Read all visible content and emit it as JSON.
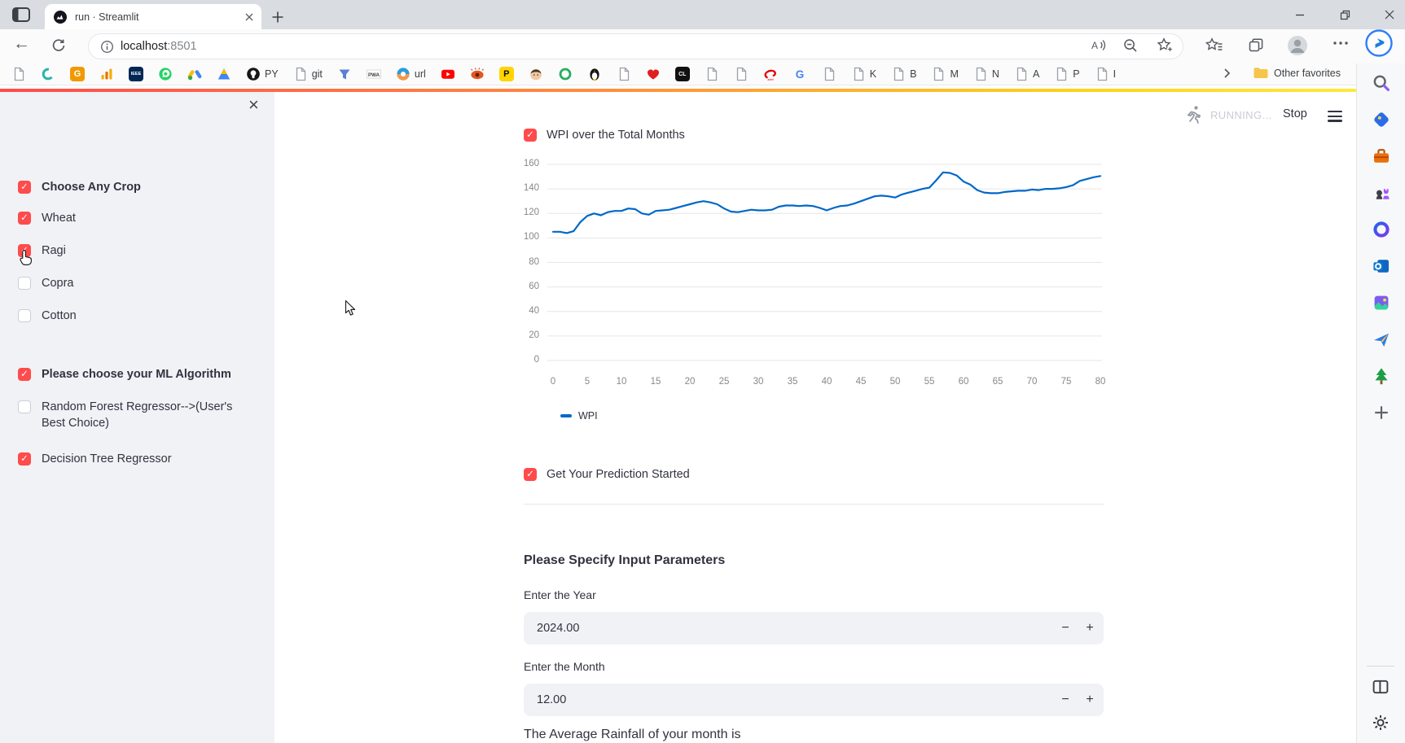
{
  "browser": {
    "tab_title": "run · Streamlit",
    "url_host": "localhost",
    "url_port": ":8501",
    "other_favorites_label": "Other favorites",
    "bookmarks": [
      {
        "name": "doc-bookmark",
        "kind": "doc"
      },
      {
        "name": "gfg-bookmark",
        "kind": "svg",
        "icon": "swirl"
      },
      {
        "name": "orange-g-bookmark",
        "kind": "tile",
        "text": "G",
        "bg": "#f29900",
        "fg": "#ffffff"
      },
      {
        "name": "analytics-bookmark",
        "kind": "svg",
        "icon": "analytics"
      },
      {
        "name": "ieee-bookmark",
        "kind": "tile",
        "text": "IEEE",
        "bg": "#002855",
        "fg": "#ffffff"
      },
      {
        "name": "whatsapp-bookmark",
        "kind": "svg",
        "icon": "whatsapp"
      },
      {
        "name": "google-ads-bookmark",
        "kind": "svg",
        "icon": "ads"
      },
      {
        "name": "triangle-bookmark",
        "kind": "svg",
        "icon": "triangle"
      },
      {
        "name": "github-bookmark",
        "kind": "svg",
        "icon": "github",
        "label": "PY"
      },
      {
        "name": "git-doc-bookmark",
        "kind": "doc",
        "label": "git"
      },
      {
        "name": "filter-bookmark",
        "kind": "svg",
        "icon": "filter"
      },
      {
        "name": "pwa-bookmark",
        "kind": "svg",
        "icon": "pwa"
      },
      {
        "name": "url-bookmark",
        "kind": "svg",
        "icon": "urlcircle",
        "label": "url"
      },
      {
        "name": "youtube-bookmark",
        "kind": "svg",
        "icon": "youtube"
      },
      {
        "name": "eye-bookmark",
        "kind": "svg",
        "icon": "eye"
      },
      {
        "name": "p-bookmark",
        "kind": "tile",
        "text": "P",
        "bg": "#ffd400",
        "fg": "#111111"
      },
      {
        "name": "face-bookmark",
        "kind": "svg",
        "icon": "face"
      },
      {
        "name": "ring-bookmark",
        "kind": "svg",
        "icon": "ring"
      },
      {
        "name": "penguin-bookmark",
        "kind": "svg",
        "icon": "penguin"
      },
      {
        "name": "doc-bookmark",
        "kind": "doc"
      },
      {
        "name": "heart-bookmark",
        "kind": "svg",
        "icon": "heart"
      },
      {
        "name": "cl-bookmark",
        "kind": "tile",
        "text": "CL",
        "bg": "#111111",
        "fg": "#ffffff"
      },
      {
        "name": "doc-bookmark",
        "kind": "doc"
      },
      {
        "name": "doc-bookmark",
        "kind": "doc"
      },
      {
        "name": "airtel-bookmark",
        "kind": "svg",
        "icon": "airtel"
      },
      {
        "name": "google-bookmark",
        "kind": "svg",
        "icon": "googleg"
      },
      {
        "name": "doc-bookmark",
        "kind": "doc"
      },
      {
        "name": "k-bookmark",
        "kind": "doc",
        "label": "K"
      },
      {
        "name": "b-bookmark",
        "kind": "doc",
        "label": "B"
      },
      {
        "name": "m-bookmark",
        "kind": "doc",
        "label": "M"
      },
      {
        "name": "n-bookmark",
        "kind": "doc",
        "label": "N"
      },
      {
        "name": "a-bookmark",
        "kind": "doc",
        "label": "A"
      },
      {
        "name": "p-doc-bookmark",
        "kind": "doc",
        "label": "P"
      },
      {
        "name": "i-bookmark",
        "kind": "doc",
        "label": "I"
      }
    ]
  },
  "edge_rail": {
    "top_icons": [
      "search",
      "shopping",
      "toolbox",
      "games",
      "m365",
      "outlook",
      "designer",
      "send",
      "tree",
      "add"
    ],
    "bottom_icons": [
      "panel",
      "settings"
    ]
  },
  "app": {
    "accent_color": "#ff4b4b",
    "check_glyph": "✓",
    "header": {
      "status": "RUNNING...",
      "stop_label": "Stop"
    },
    "sidebar": {
      "close_glyph": "×",
      "items": [
        {
          "label": "Choose Any Crop",
          "checked": true,
          "bold": true
        },
        {
          "label": "Wheat",
          "checked": true,
          "bold": false
        },
        {
          "label": "Ragi",
          "checked": true,
          "bold": false
        },
        {
          "label": "Copra",
          "checked": false,
          "bold": false
        },
        {
          "label": "Cotton",
          "checked": false,
          "bold": false
        },
        {
          "label": "Please choose your ML Algorithm",
          "checked": true,
          "bold": true
        },
        {
          "label": "Random Forest Regressor-->(User's Best Choice)",
          "checked": false,
          "bold": false
        },
        {
          "label": "Decision Tree Regressor",
          "checked": true,
          "bold": false
        }
      ]
    },
    "main": {
      "chart_checkbox_label": "WPI over the Total Months",
      "prediction_checkbox_label": "Get Your Prediction Started",
      "params_heading": "Please Specify Input Parameters",
      "year_label": "Enter the Year",
      "year_value": "2024.00",
      "month_label": "Enter the Month",
      "month_value": "12.00",
      "rainfall_text": "The Average Rainfall of your month is",
      "stepper": {
        "minus": "−",
        "plus": "+"
      }
    }
  },
  "chart_data": {
    "type": "line",
    "title": "WPI over the Total Months",
    "xlabel": "",
    "ylabel": "",
    "xlim": [
      0,
      80
    ],
    "ylim": [
      0,
      160
    ],
    "x_ticks": [
      0,
      5,
      10,
      15,
      20,
      25,
      30,
      35,
      40,
      45,
      50,
      55,
      60,
      65,
      70,
      75,
      80
    ],
    "y_ticks": [
      0,
      20,
      40,
      60,
      80,
      100,
      120,
      140,
      160
    ],
    "grid": "horizontal",
    "legend_position": "bottom-left",
    "series": [
      {
        "name": "WPI",
        "color": "#0068c9",
        "x_start": 0,
        "x_step": 1,
        "values": [
          105,
          105,
          104,
          105.5,
          113,
          118,
          120,
          118.5,
          121,
          122,
          122,
          124,
          123.5,
          120,
          119,
          122,
          122.5,
          123,
          124.5,
          126,
          127.5,
          129,
          130,
          129,
          127.5,
          124,
          121.5,
          121,
          122,
          123,
          122.5,
          122.5,
          123,
          125.5,
          126.5,
          126.5,
          126,
          126.5,
          126,
          124.5,
          122.5,
          124.5,
          126,
          126.5,
          128,
          130,
          132,
          134,
          134.5,
          134,
          133,
          135.5,
          137,
          138.5,
          140,
          141,
          147,
          153.5,
          153,
          151,
          146,
          143.5,
          139,
          137,
          136.5,
          136.5,
          137.5,
          138,
          138.5,
          138.5,
          139.5,
          139,
          140,
          140,
          140.5,
          141.5,
          143,
          146.5,
          148,
          149.5,
          150.5
        ]
      }
    ]
  }
}
